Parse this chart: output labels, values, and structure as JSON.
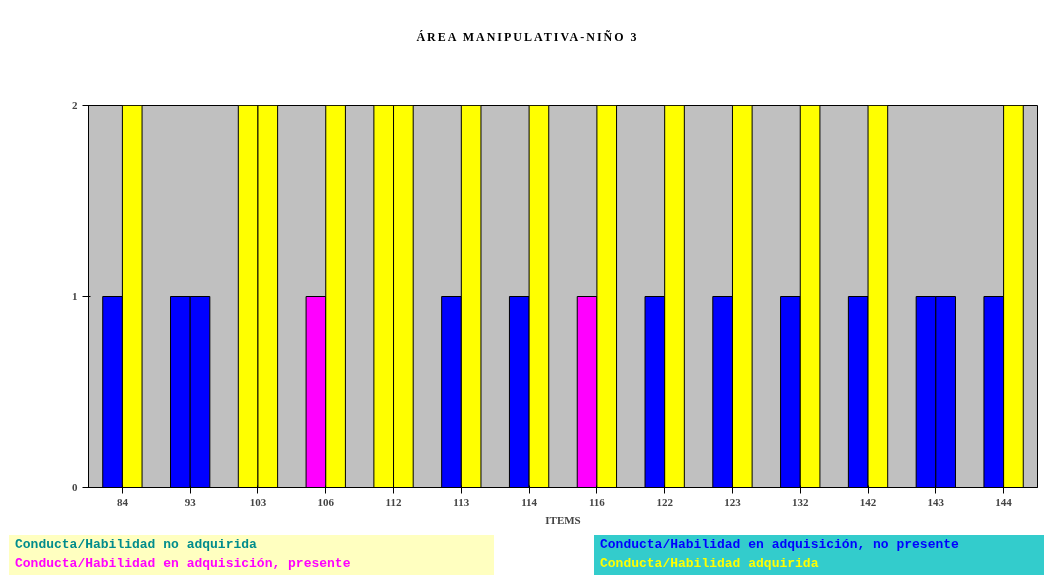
{
  "chart_data": {
    "type": "bar",
    "title": "ÁREA MANIPULATIVA-NIÑO 3",
    "xlabel": "ITEMS",
    "categories": [
      "84",
      "93",
      "103",
      "106",
      "112",
      "113",
      "114",
      "116",
      "122",
      "123",
      "132",
      "142",
      "143",
      "144"
    ],
    "series": [
      {
        "values": [
          1,
          1,
          2,
          1,
          2,
          1,
          1,
          1,
          1,
          1,
          1,
          1,
          1,
          1
        ],
        "colors": [
          "#0000ff",
          "#0000ff",
          "#ffff00",
          "#ff00ff",
          "#ffff00",
          "#0000ff",
          "#0000ff",
          "#ff00ff",
          "#0000ff",
          "#0000ff",
          "#0000ff",
          "#0000ff",
          "#0000ff",
          "#0000ff"
        ]
      },
      {
        "values": [
          2,
          1,
          2,
          2,
          2,
          2,
          2,
          2,
          2,
          2,
          2,
          2,
          1,
          2
        ],
        "colors": [
          "#ffff00",
          "#0000ff",
          "#ffff00",
          "#ffff00",
          "#ffff00",
          "#ffff00",
          "#ffff00",
          "#ffff00",
          "#ffff00",
          "#ffff00",
          "#ffff00",
          "#ffff00",
          "#0000ff",
          "#ffff00"
        ]
      }
    ],
    "ylim": [
      0,
      2
    ],
    "yticks": [
      0,
      1,
      2
    ],
    "grid": false,
    "annotations": [
      "Conducta/Habilidad no adquirida",
      "Conducta/Habilidad en adquisición, presente",
      "Conducta/Habilidad en adquisición, no presente",
      "Conducta/Habilidad adquirida"
    ]
  }
}
